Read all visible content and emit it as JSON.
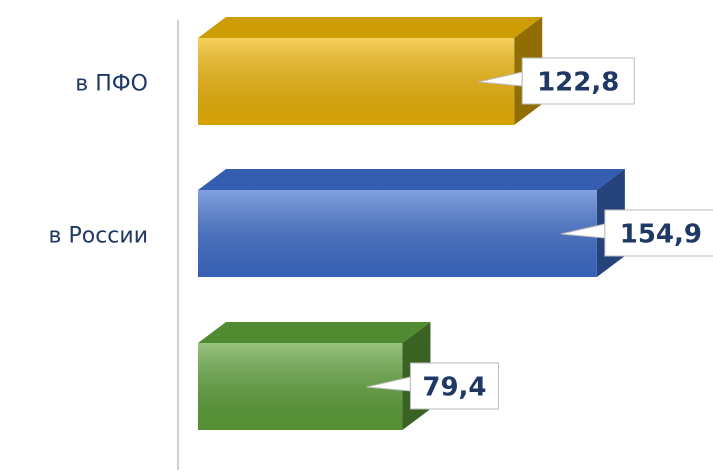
{
  "chart_data": {
    "type": "bar",
    "orientation": "horizontal",
    "categories": [
      "в ПФО",
      "в России",
      null
    ],
    "values": [
      122.8,
      154.9,
      79.4
    ],
    "value_labels": [
      "122,8",
      "154,9",
      "79,4"
    ],
    "colors": [
      "#f2b705",
      "#3f6fcf",
      "#5fa33a"
    ],
    "xlim": [
      0,
      200
    ]
  }
}
